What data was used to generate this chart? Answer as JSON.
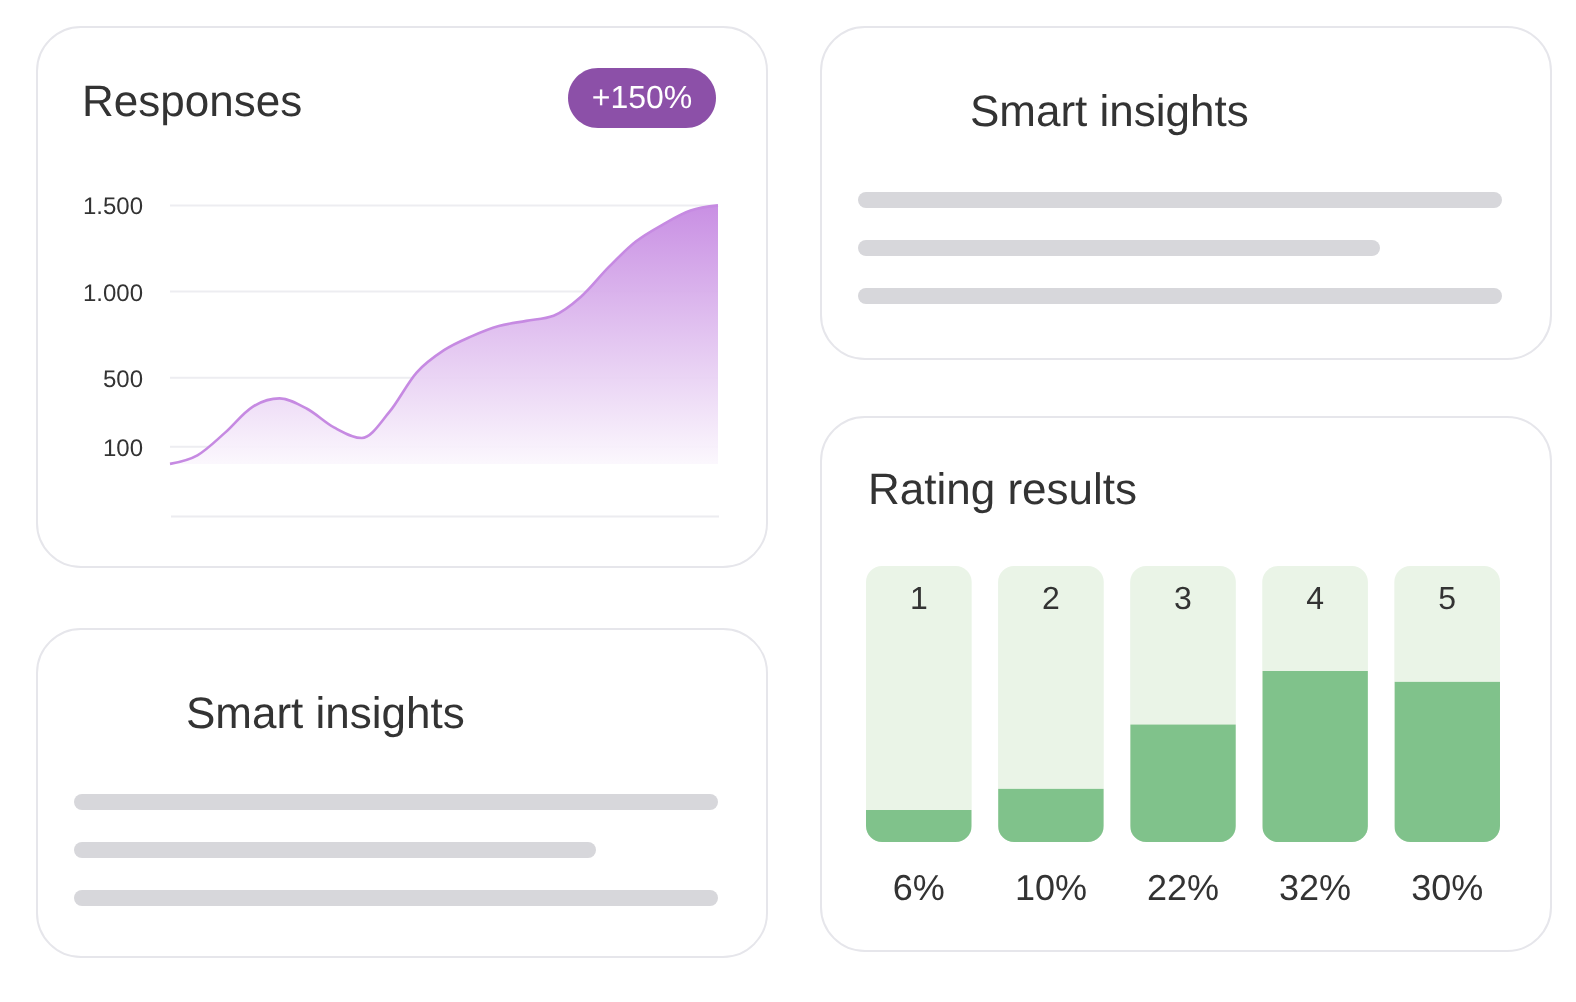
{
  "chart_data": [
    {
      "type": "area",
      "title": "Responses",
      "annotations": [
        "+150%"
      ],
      "categories": [
        null,
        null,
        null,
        null,
        null,
        null,
        null,
        null,
        null,
        null,
        null,
        null,
        null,
        null,
        null,
        null,
        null,
        null,
        null,
        null,
        null
      ],
      "series": [
        {
          "color": "#c68ae2",
          "values": [
            0,
            50,
            180,
            330,
            380,
            320,
            210,
            150,
            300,
            530,
            660,
            740,
            800,
            830,
            860,
            970,
            1140,
            1290,
            1390,
            1470,
            1500
          ]
        }
      ],
      "ylim": [
        -300,
        1500
      ],
      "yticks": [
        {
          "value": 1500,
          "label": "1.500"
        },
        {
          "value": 1000,
          "label": "1.000"
        },
        500,
        100
      ],
      "grid": "y",
      "tick_labels": "y"
    },
    {
      "type": "other",
      "title": "Smart insights"
    },
    {
      "type": "bar",
      "title": "Rating results",
      "categories": [
        "1",
        "2",
        "3",
        "4",
        "5"
      ],
      "values": [
        6,
        10,
        22,
        32,
        30
      ],
      "color": "#80c28b",
      "value_labels": [
        "6%",
        "10%",
        "22%",
        "32%",
        "30%"
      ],
      "bands": [
        {
          "axis": "x",
          "from": "1",
          "to": "1",
          "color": "#eaf4e7"
        },
        {
          "axis": "x",
          "from": "2",
          "to": "2",
          "color": "#eaf4e7"
        },
        {
          "axis": "x",
          "from": "3",
          "to": "3",
          "color": "#eaf4e7"
        },
        {
          "axis": "x",
          "from": "4",
          "to": "4",
          "color": "#eaf4e7"
        },
        {
          "axis": "x",
          "from": "5",
          "to": "5",
          "color": "#eaf4e7"
        }
      ],
      "tick_labels": "x"
    },
    {
      "type": "other",
      "title": "Smart insights"
    }
  ]
}
